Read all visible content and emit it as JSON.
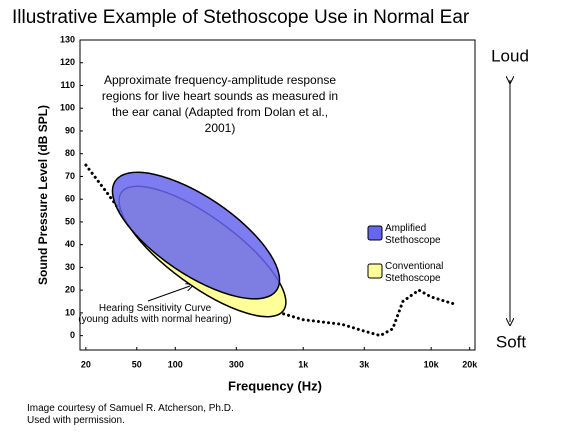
{
  "chart_data": {
    "type": "region",
    "title": "Illustrative Example of Stethoscope Use in Normal Ear",
    "annotation": "Approximate frequency-amplitude response regions for live heart sounds as measured in the ear canal (Adapted from Dolan et al., 2001)",
    "xlabel": "Frequency (Hz)",
    "ylabel": "Sound Pressure Level (dB SPL)",
    "top_label": "Loud",
    "bottom_label": "Soft",
    "footer": "Image courtesy of Samuel R. Atcherson, Ph.D. Used with permission.",
    "xscale": "log",
    "xlim": [
      18,
      22000
    ],
    "xticks": [
      20,
      50,
      100,
      300,
      {
        "value": 1000,
        "label": "1k"
      },
      {
        "value": 3000,
        "label": "3k"
      },
      {
        "value": 10000,
        "label": "10k"
      },
      {
        "value": 20000,
        "label": "20k"
      }
    ],
    "ylim": [
      -5,
      130
    ],
    "yticks": [
      0,
      10,
      20,
      30,
      40,
      50,
      60,
      70,
      80,
      90,
      100,
      110,
      120,
      130
    ],
    "series": [
      {
        "type": "curve",
        "name": "Hearing Sensitivity Curve",
        "description": "(young adults with normal hearing)",
        "color": "#000000",
        "x": [
          20,
          30,
          50,
          100,
          200,
          500,
          1000,
          2000,
          3000,
          4000,
          5000,
          6000,
          8000,
          10000,
          15000
        ],
        "values": [
          75,
          62,
          45,
          30,
          20,
          12,
          7,
          5,
          2,
          0,
          3,
          15,
          20,
          17,
          14
        ]
      },
      {
        "type": "ellipse",
        "name": "Conventional Stethoscope",
        "color": "#ffff99",
        "x": [
          38,
          700
        ],
        "values": [
          63,
          11
        ],
        "width": 15
      },
      {
        "type": "ellipse",
        "name": "Amplified Stethoscope",
        "color": "#6666ee",
        "x": [
          34,
          620
        ],
        "values": [
          68,
          20
        ],
        "width": 17
      }
    ]
  }
}
